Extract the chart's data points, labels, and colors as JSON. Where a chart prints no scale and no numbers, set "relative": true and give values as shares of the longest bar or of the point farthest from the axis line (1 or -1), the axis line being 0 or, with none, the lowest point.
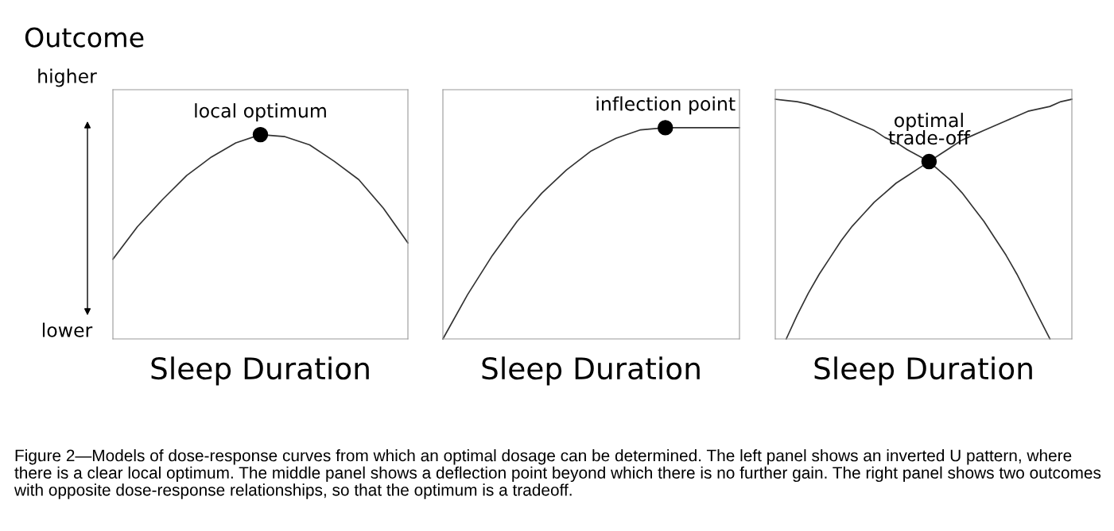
{
  "chart_data": [
    {
      "type": "line",
      "title": "Outcome",
      "xlabel": "Sleep Duration",
      "relative": true,
      "marker": "none",
      "annotations": [
        "higher",
        "lower",
        {
          "text": "local optimum",
          "y": 1.0
        },
        "Figure 2—Models of dose-response curves from which an optimal dosage can be determined. The left panel shows an inverted U pattern, where there is a clear local optimum. The middle panel shows a deflection point beyond which there is no further gain. The right panel shows two outcomes with opposite dose-response relationships, so that the optimum is a tradeoff."
      ],
      "categories": [
        null,
        null,
        null,
        null,
        null,
        null,
        null,
        null,
        null,
        null,
        null,
        null,
        null
      ],
      "series": [
        {
          "color": "#333333",
          "values": [
            0.39,
            0.55,
            0.68,
            0.8,
            0.89,
            0.96,
            1.0,
            0.99,
            0.95,
            0.87,
            0.78,
            0.64,
            0.47
          ]
        }
      ]
    },
    {
      "type": "line",
      "xlabel": "Sleep Duration",
      "relative": true,
      "marker": "none",
      "categories": [
        null,
        null,
        null,
        null,
        null,
        null,
        null,
        null,
        null,
        null,
        null,
        null,
        null
      ],
      "annotations": [
        {
          "text": "inflection point",
          "y": 1.0
        }
      ],
      "series": [
        {
          "color": "#333333",
          "values": [
            0,
            0.21,
            0.395,
            0.556,
            0.69,
            0.8,
            0.89,
            0.95,
            0.99,
            1.0,
            1.0,
            1.0,
            1.0
          ]
        }
      ]
    },
    {
      "type": "line",
      "xlabel": "Sleep Duration",
      "relative": true,
      "marker": "none",
      "categories": [
        null,
        null,
        null,
        null,
        null,
        null,
        null,
        null,
        null,
        null,
        null,
        null,
        null,
        null,
        null,
        null,
        null,
        null,
        null,
        null,
        null,
        null,
        null,
        null,
        null,
        null,
        null,
        null
      ],
      "annotations": [
        {
          "text": "optimal\ntrade-off",
          "y": 0.74
        }
      ],
      "series": [
        {
          "color": "#333333",
          "values": [
            1.0,
            0.995,
            0.99,
            0.98,
            0.965,
            0.95,
            0.93,
            0.91,
            0.89,
            0.87,
            0.84,
            0.82,
            0.79,
            0.765,
            0.74,
            0.7,
            0.66,
            0.61,
            0.55,
            0.49,
            0.42,
            0.35,
            0.27,
            0.18,
            0.09,
            0,
            null,
            null
          ]
        },
        {
          "color": "#333333",
          "values": [
            null,
            0,
            0.1,
            0.19,
            0.27,
            0.34,
            0.41,
            0.47,
            0.52,
            0.57,
            0.61,
            0.65,
            0.68,
            0.71,
            0.74,
            0.77,
            0.8,
            0.83,
            0.85,
            0.87,
            0.89,
            0.91,
            0.93,
            0.95,
            0.96,
            0.97,
            0.99,
            1.0
          ]
        }
      ]
    }
  ]
}
